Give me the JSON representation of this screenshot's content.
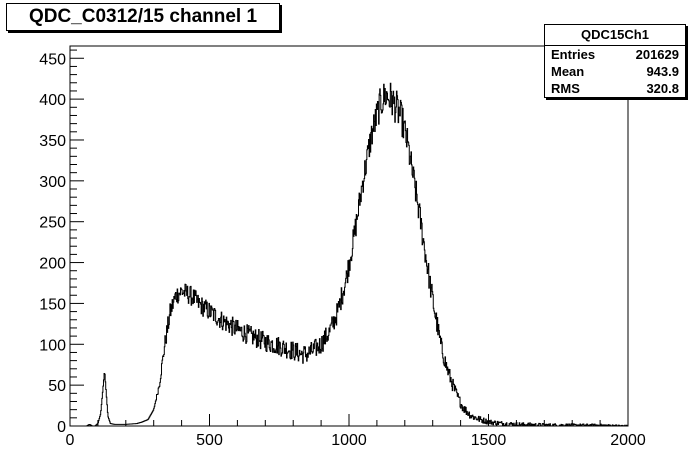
{
  "title": "QDC_C0312/15 channel 1",
  "stats": {
    "name": "QDC15Ch1",
    "rows": [
      {
        "label": "Entries",
        "value": "201629"
      },
      {
        "label": "Mean",
        "value": "943.9"
      },
      {
        "label": "RMS",
        "value": "320.8"
      }
    ]
  },
  "chart_data": {
    "type": "bar",
    "title": "QDC_C0312/15 channel 1",
    "xlabel": "",
    "ylabel": "",
    "xlim": [
      0,
      2000
    ],
    "ylim": [
      0,
      465
    ],
    "x_ticks": [
      0,
      500,
      1000,
      1500,
      2000
    ],
    "y_ticks": [
      0,
      50,
      100,
      150,
      200,
      250,
      300,
      350,
      400,
      450
    ],
    "grid": false,
    "legend": "none",
    "bin_width": 2,
    "outline_points": [
      [
        0,
        0
      ],
      [
        60,
        0
      ],
      [
        70,
        2
      ],
      [
        80,
        0
      ],
      [
        90,
        0
      ],
      [
        100,
        3
      ],
      [
        110,
        15
      ],
      [
        118,
        45
      ],
      [
        124,
        68
      ],
      [
        130,
        40
      ],
      [
        136,
        12
      ],
      [
        145,
        3
      ],
      [
        160,
        2
      ],
      [
        200,
        2
      ],
      [
        240,
        3
      ],
      [
        260,
        5
      ],
      [
        280,
        8
      ],
      [
        300,
        20
      ],
      [
        320,
        50
      ],
      [
        340,
        100
      ],
      [
        360,
        140
      ],
      [
        380,
        160
      ],
      [
        400,
        165
      ],
      [
        420,
        162
      ],
      [
        440,
        158
      ],
      [
        460,
        150
      ],
      [
        480,
        145
      ],
      [
        500,
        140
      ],
      [
        550,
        128
      ],
      [
        600,
        118
      ],
      [
        650,
        110
      ],
      [
        700,
        103
      ],
      [
        750,
        98
      ],
      [
        800,
        92
      ],
      [
        830,
        88
      ],
      [
        850,
        88
      ],
      [
        870,
        92
      ],
      [
        900,
        100
      ],
      [
        930,
        115
      ],
      [
        960,
        140
      ],
      [
        990,
        180
      ],
      [
        1020,
        235
      ],
      [
        1050,
        300
      ],
      [
        1080,
        355
      ],
      [
        1110,
        392
      ],
      [
        1130,
        405
      ],
      [
        1150,
        400
      ],
      [
        1170,
        390
      ],
      [
        1190,
        375
      ],
      [
        1210,
        345
      ],
      [
        1230,
        305
      ],
      [
        1250,
        265
      ],
      [
        1270,
        220
      ],
      [
        1290,
        175
      ],
      [
        1310,
        135
      ],
      [
        1330,
        98
      ],
      [
        1350,
        72
      ],
      [
        1370,
        52
      ],
      [
        1390,
        35
      ],
      [
        1410,
        22
      ],
      [
        1440,
        12
      ],
      [
        1470,
        8
      ],
      [
        1500,
        5
      ],
      [
        1550,
        3
      ],
      [
        1600,
        2
      ],
      [
        1700,
        1
      ],
      [
        1800,
        1
      ],
      [
        1900,
        1
      ],
      [
        2000,
        0
      ]
    ],
    "noise_amplitude": [
      [
        0,
        0
      ],
      [
        300,
        0
      ],
      [
        350,
        12
      ],
      [
        500,
        12
      ],
      [
        900,
        12
      ],
      [
        1000,
        14
      ],
      [
        1150,
        22
      ],
      [
        1300,
        14
      ],
      [
        1400,
        6
      ],
      [
        1500,
        3
      ],
      [
        2000,
        1
      ]
    ]
  }
}
